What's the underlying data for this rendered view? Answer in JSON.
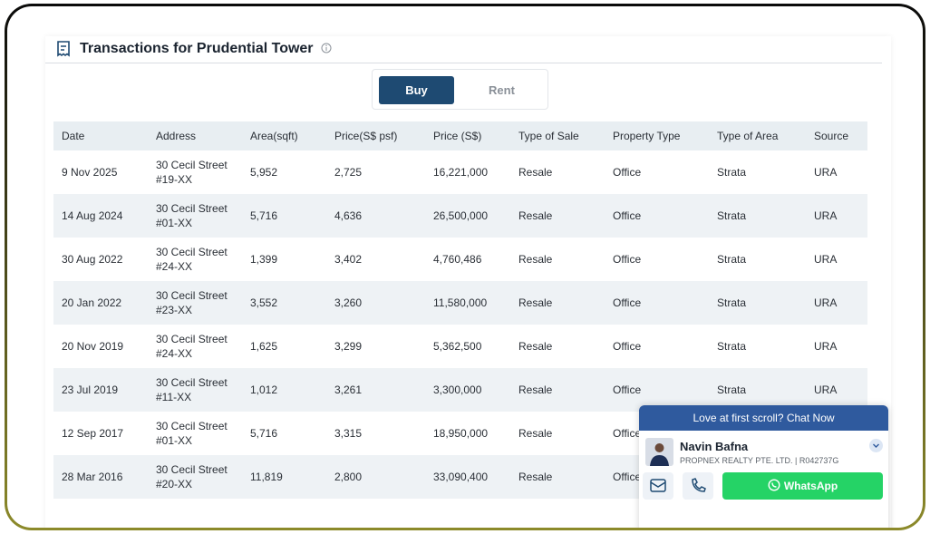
{
  "header": {
    "title": "Transactions for Prudential Tower"
  },
  "tabs": [
    "Buy",
    "Rent"
  ],
  "table": {
    "columns": [
      "Date",
      "Address",
      "Area(sqft)",
      "Price(S$ psf)",
      "Price (S$)",
      "Type of Sale",
      "Property Type",
      "Type of Area",
      "Source"
    ],
    "rows": [
      [
        "9 Nov 2025",
        "30 Cecil Street\n#19-XX",
        "5,952",
        "2,725",
        "16,221,000",
        "Resale",
        "Office",
        "Strata",
        "URA"
      ],
      [
        "14 Aug 2024",
        "30 Cecil Street\n#01-XX",
        "5,716",
        "4,636",
        "26,500,000",
        "Resale",
        "Office",
        "Strata",
        "URA"
      ],
      [
        "30 Aug 2022",
        "30 Cecil Street\n#24-XX",
        "1,399",
        "3,402",
        "4,760,486",
        "Resale",
        "Office",
        "Strata",
        "URA"
      ],
      [
        "20 Jan 2022",
        "30 Cecil Street\n#23-XX",
        "3,552",
        "3,260",
        "11,580,000",
        "Resale",
        "Office",
        "Strata",
        "URA"
      ],
      [
        "20 Nov 2019",
        "30 Cecil Street\n#24-XX",
        "1,625",
        "3,299",
        "5,362,500",
        "Resale",
        "Office",
        "Strata",
        "URA"
      ],
      [
        "23 Jul 2019",
        "30 Cecil Street\n#11-XX",
        "1,012",
        "3,261",
        "3,300,000",
        "Resale",
        "Office",
        "Strata",
        "URA"
      ],
      [
        "12 Sep 2017",
        "30 Cecil Street\n#01-XX",
        "5,716",
        "3,315",
        "18,950,000",
        "Resale",
        "Office",
        null,
        null
      ],
      [
        "28 Mar 2016",
        "30 Cecil Street\n#20-XX",
        "11,819",
        "2,800",
        "33,090,400",
        "Resale",
        "Office",
        null,
        null
      ]
    ]
  },
  "chat": {
    "banner": "Love at first scroll? Chat Now",
    "agent_name": "Navin Bafna",
    "agent_info": "PROPNEX REALTY PTE. LTD. | R042737G",
    "whatsapp": "WhatsApp"
  }
}
